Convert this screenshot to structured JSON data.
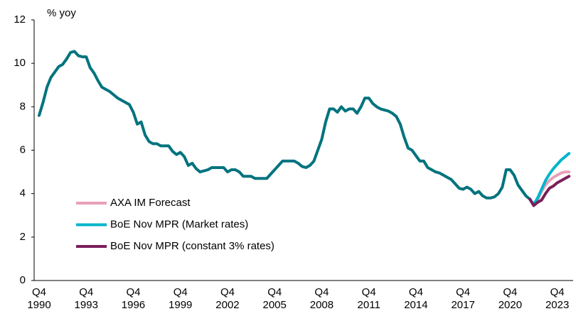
{
  "chart_data": {
    "type": "line",
    "ylabel": "% yoy",
    "categories": [
      "Q4 1990",
      null,
      null,
      null,
      null,
      null,
      null,
      null,
      null,
      null,
      null,
      null,
      "Q4 1993",
      null,
      null,
      null,
      null,
      null,
      null,
      null,
      null,
      null,
      null,
      null,
      "Q4 1996",
      null,
      null,
      null,
      null,
      null,
      null,
      null,
      null,
      null,
      null,
      null,
      "Q4 1999",
      null,
      null,
      null,
      null,
      null,
      null,
      null,
      null,
      null,
      null,
      null,
      "Q4 2002",
      null,
      null,
      null,
      null,
      null,
      null,
      null,
      null,
      null,
      null,
      null,
      "Q4 2005",
      null,
      null,
      null,
      null,
      null,
      null,
      null,
      null,
      null,
      null,
      null,
      "Q4 2008",
      null,
      null,
      null,
      null,
      null,
      null,
      null,
      null,
      null,
      null,
      null,
      "Q4 2011",
      null,
      null,
      null,
      null,
      null,
      null,
      null,
      null,
      null,
      null,
      null,
      "Q4 2014",
      null,
      null,
      null,
      null,
      null,
      null,
      null,
      null,
      null,
      null,
      null,
      "Q4 2017",
      null,
      null,
      null,
      null,
      null,
      null,
      null,
      null,
      null,
      null,
      null,
      "Q4 2020",
      null,
      null,
      null,
      null,
      null,
      null,
      null,
      null,
      null,
      null,
      null,
      "Q4 2023",
      null,
      null,
      null
    ],
    "series": [
      {
        "color": "#00737e",
        "values": [
          7.6,
          8.2,
          8.9,
          9.35,
          9.6,
          9.85,
          9.95,
          10.2,
          10.5,
          10.55,
          10.35,
          10.3,
          10.3,
          9.8,
          9.55,
          9.2,
          8.9,
          8.8,
          8.7,
          8.55,
          8.4,
          8.3,
          8.2,
          8.1,
          7.75,
          7.2,
          7.3,
          6.7,
          6.4,
          6.3,
          6.3,
          6.2,
          6.2,
          6.2,
          5.95,
          5.8,
          5.9,
          5.7,
          5.3,
          5.4,
          5.15,
          5.0,
          5.05,
          5.1,
          5.2,
          5.2,
          5.2,
          5.2,
          5.0,
          5.1,
          5.1,
          5.0,
          4.8,
          4.8,
          4.8,
          4.7,
          4.7,
          4.7,
          4.7,
          4.9,
          5.1,
          5.3,
          5.5,
          5.5,
          5.5,
          5.5,
          5.4,
          5.25,
          5.2,
          5.3,
          5.5,
          6.0,
          6.5,
          7.3,
          7.9,
          7.9,
          7.75,
          8.0,
          7.8,
          7.9,
          7.9,
          7.7,
          8.0,
          8.4,
          8.4,
          8.15,
          8.0,
          7.9,
          7.85,
          7.8,
          7.7,
          7.55,
          7.2,
          6.6,
          6.1,
          6.0,
          5.75,
          5.5,
          5.5,
          5.2,
          5.1,
          5.0,
          4.95,
          4.85,
          4.75,
          4.65,
          4.45,
          4.25,
          4.2,
          4.3,
          4.2,
          4.0,
          4.1,
          3.9,
          3.8,
          3.8,
          3.85,
          4.0,
          4.3,
          5.1,
          5.1,
          4.85,
          4.4,
          4.15,
          3.9,
          3.75,
          null,
          null,
          null,
          null,
          null,
          null,
          null,
          null,
          null,
          null
        ]
      },
      {
        "name": "AXA IM Forecast",
        "color": "#e8a0b8",
        "values": [
          null,
          null,
          null,
          null,
          null,
          null,
          null,
          null,
          null,
          null,
          null,
          null,
          null,
          null,
          null,
          null,
          null,
          null,
          null,
          null,
          null,
          null,
          null,
          null,
          null,
          null,
          null,
          null,
          null,
          null,
          null,
          null,
          null,
          null,
          null,
          null,
          null,
          null,
          null,
          null,
          null,
          null,
          null,
          null,
          null,
          null,
          null,
          null,
          null,
          null,
          null,
          null,
          null,
          null,
          null,
          null,
          null,
          null,
          null,
          null,
          null,
          null,
          null,
          null,
          null,
          null,
          null,
          null,
          null,
          null,
          null,
          null,
          null,
          null,
          null,
          null,
          null,
          null,
          null,
          null,
          null,
          null,
          null,
          null,
          null,
          null,
          null,
          null,
          null,
          null,
          null,
          null,
          null,
          null,
          null,
          null,
          null,
          null,
          null,
          null,
          null,
          null,
          null,
          null,
          null,
          null,
          null,
          null,
          null,
          null,
          null,
          null,
          null,
          null,
          null,
          null,
          null,
          null,
          null,
          null,
          null,
          null,
          null,
          null,
          null,
          3.75,
          3.5,
          3.7,
          4.1,
          4.4,
          4.6,
          4.75,
          4.85,
          4.95,
          5.0,
          5.0
        ]
      },
      {
        "name": "BoE Nov MPR (Market rates)",
        "color": "#00b5cc",
        "values": [
          null,
          null,
          null,
          null,
          null,
          null,
          null,
          null,
          null,
          null,
          null,
          null,
          null,
          null,
          null,
          null,
          null,
          null,
          null,
          null,
          null,
          null,
          null,
          null,
          null,
          null,
          null,
          null,
          null,
          null,
          null,
          null,
          null,
          null,
          null,
          null,
          null,
          null,
          null,
          null,
          null,
          null,
          null,
          null,
          null,
          null,
          null,
          null,
          null,
          null,
          null,
          null,
          null,
          null,
          null,
          null,
          null,
          null,
          null,
          null,
          null,
          null,
          null,
          null,
          null,
          null,
          null,
          null,
          null,
          null,
          null,
          null,
          null,
          null,
          null,
          null,
          null,
          null,
          null,
          null,
          null,
          null,
          null,
          null,
          null,
          null,
          null,
          null,
          null,
          null,
          null,
          null,
          null,
          null,
          null,
          null,
          null,
          null,
          null,
          null,
          null,
          null,
          null,
          null,
          null,
          null,
          null,
          null,
          null,
          null,
          null,
          null,
          null,
          null,
          null,
          null,
          null,
          null,
          null,
          null,
          null,
          null,
          null,
          null,
          null,
          3.75,
          3.5,
          3.8,
          4.2,
          4.6,
          4.9,
          5.15,
          5.35,
          5.55,
          5.7,
          5.85
        ]
      },
      {
        "name": "BoE Nov MPR (constant 3% rates)",
        "color": "#7b1e5a",
        "values": [
          null,
          null,
          null,
          null,
          null,
          null,
          null,
          null,
          null,
          null,
          null,
          null,
          null,
          null,
          null,
          null,
          null,
          null,
          null,
          null,
          null,
          null,
          null,
          null,
          null,
          null,
          null,
          null,
          null,
          null,
          null,
          null,
          null,
          null,
          null,
          null,
          null,
          null,
          null,
          null,
          null,
          null,
          null,
          null,
          null,
          null,
          null,
          null,
          null,
          null,
          null,
          null,
          null,
          null,
          null,
          null,
          null,
          null,
          null,
          null,
          null,
          null,
          null,
          null,
          null,
          null,
          null,
          null,
          null,
          null,
          null,
          null,
          null,
          null,
          null,
          null,
          null,
          null,
          null,
          null,
          null,
          null,
          null,
          null,
          null,
          null,
          null,
          null,
          null,
          null,
          null,
          null,
          null,
          null,
          null,
          null,
          null,
          null,
          null,
          null,
          null,
          null,
          null,
          null,
          null,
          null,
          null,
          null,
          null,
          null,
          null,
          null,
          null,
          null,
          null,
          null,
          null,
          null,
          null,
          null,
          null,
          null,
          null,
          null,
          null,
          3.75,
          3.45,
          3.6,
          3.7,
          4.0,
          4.25,
          4.35,
          4.5,
          4.6,
          4.7,
          4.8
        ]
      }
    ],
    "ylim": [
      0,
      12
    ],
    "yticks": [
      0,
      2,
      4,
      6,
      8,
      10,
      12
    ],
    "grid": false,
    "legend": "lower left"
  }
}
